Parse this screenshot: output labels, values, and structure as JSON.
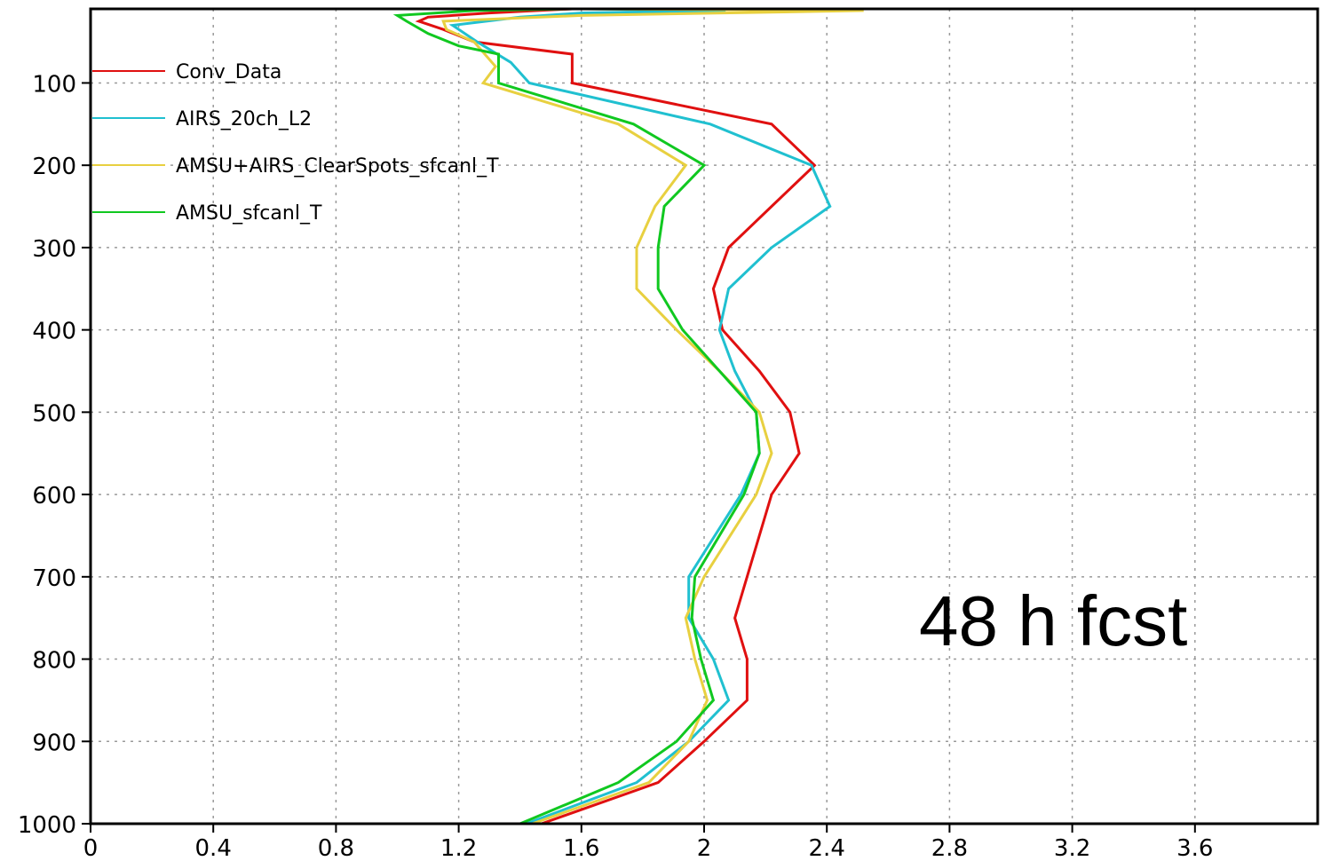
{
  "chart_data": {
    "type": "line",
    "title": "",
    "xlabel": "",
    "ylabel": "",
    "xlim": [
      0,
      4.0
    ],
    "ylim": [
      1000,
      10
    ],
    "y_inverted": true,
    "grid": true,
    "legend_position": "top-left",
    "x_ticks": [
      0,
      0.4,
      0.8,
      1.2,
      1.6,
      2,
      2.4,
      2.8,
      3.2,
      3.6
    ],
    "x_tick_labels": [
      "0",
      "0.4",
      "0.8",
      "1.2",
      "1.6",
      "2",
      "2.4",
      "2.8",
      "3.2",
      "3.6"
    ],
    "y_ticks": [
      100,
      200,
      300,
      400,
      500,
      600,
      700,
      800,
      900,
      1000
    ],
    "y_tick_labels": [
      "100",
      "200",
      "300",
      "400",
      "500",
      "600",
      "700",
      "800",
      "900",
      "1000"
    ],
    "annotation": "48 h fcst",
    "series": [
      {
        "name": "Conv_Data",
        "color": "#e01010",
        "points": [
          [
            1.57,
            10
          ],
          [
            1.3,
            15
          ],
          [
            1.1,
            20
          ],
          [
            1.07,
            25
          ],
          [
            1.15,
            35
          ],
          [
            1.25,
            50
          ],
          [
            1.57,
            65
          ],
          [
            1.57,
            100
          ],
          [
            2.22,
            150
          ],
          [
            2.36,
            200
          ],
          [
            2.22,
            250
          ],
          [
            2.08,
            300
          ],
          [
            2.03,
            350
          ],
          [
            2.06,
            400
          ],
          [
            2.18,
            450
          ],
          [
            2.28,
            500
          ],
          [
            2.31,
            550
          ],
          [
            2.22,
            600
          ],
          [
            2.14,
            700
          ],
          [
            2.1,
            750
          ],
          [
            2.14,
            800
          ],
          [
            2.14,
            850
          ],
          [
            2.0,
            900
          ],
          [
            1.85,
            950
          ],
          [
            1.47,
            1000
          ]
        ]
      },
      {
        "name": "AIRS_20ch_L2",
        "color": "#20c0d0",
        "points": [
          [
            1.6,
            10
          ],
          [
            2.07,
            12
          ],
          [
            1.6,
            15
          ],
          [
            1.4,
            20
          ],
          [
            1.18,
            30
          ],
          [
            1.26,
            50
          ],
          [
            1.37,
            75
          ],
          [
            1.43,
            100
          ],
          [
            2.02,
            150
          ],
          [
            2.35,
            200
          ],
          [
            2.41,
            250
          ],
          [
            2.22,
            300
          ],
          [
            2.08,
            350
          ],
          [
            2.05,
            400
          ],
          [
            2.1,
            450
          ],
          [
            2.17,
            500
          ],
          [
            2.18,
            550
          ],
          [
            2.12,
            600
          ],
          [
            1.95,
            700
          ],
          [
            1.95,
            750
          ],
          [
            2.03,
            800
          ],
          [
            2.08,
            850
          ],
          [
            1.95,
            900
          ],
          [
            1.78,
            950
          ],
          [
            1.42,
            1000
          ]
        ]
      },
      {
        "name": "AMSU+AIRS_ClearSpots_sfcanl_T",
        "color": "#e8d040",
        "points": [
          [
            1.58,
            10
          ],
          [
            2.52,
            12
          ],
          [
            1.6,
            18
          ],
          [
            1.15,
            25
          ],
          [
            1.16,
            35
          ],
          [
            1.25,
            50
          ],
          [
            1.32,
            80
          ],
          [
            1.28,
            100
          ],
          [
            1.72,
            150
          ],
          [
            1.94,
            200
          ],
          [
            1.84,
            250
          ],
          [
            1.78,
            300
          ],
          [
            1.78,
            350
          ],
          [
            1.91,
            400
          ],
          [
            2.05,
            450
          ],
          [
            2.18,
            500
          ],
          [
            2.22,
            550
          ],
          [
            2.17,
            600
          ],
          [
            2.0,
            700
          ],
          [
            1.94,
            750
          ],
          [
            1.97,
            800
          ],
          [
            2.01,
            850
          ],
          [
            1.95,
            900
          ],
          [
            1.82,
            950
          ],
          [
            1.44,
            1000
          ]
        ]
      },
      {
        "name": "AMSU_sfcanl_T",
        "color": "#10c820",
        "points": [
          [
            1.57,
            10
          ],
          [
            1.25,
            12
          ],
          [
            1.0,
            18
          ],
          [
            1.03,
            25
          ],
          [
            1.1,
            40
          ],
          [
            1.2,
            55
          ],
          [
            1.33,
            65
          ],
          [
            1.33,
            100
          ],
          [
            1.77,
            150
          ],
          [
            2.0,
            200
          ],
          [
            1.87,
            250
          ],
          [
            1.85,
            300
          ],
          [
            1.85,
            350
          ],
          [
            1.93,
            400
          ],
          [
            2.05,
            450
          ],
          [
            2.17,
            500
          ],
          [
            2.18,
            550
          ],
          [
            2.13,
            600
          ],
          [
            1.97,
            700
          ],
          [
            1.96,
            750
          ],
          [
            1.99,
            800
          ],
          [
            2.03,
            850
          ],
          [
            1.91,
            900
          ],
          [
            1.72,
            950
          ],
          [
            1.4,
            1000
          ]
        ]
      }
    ]
  }
}
